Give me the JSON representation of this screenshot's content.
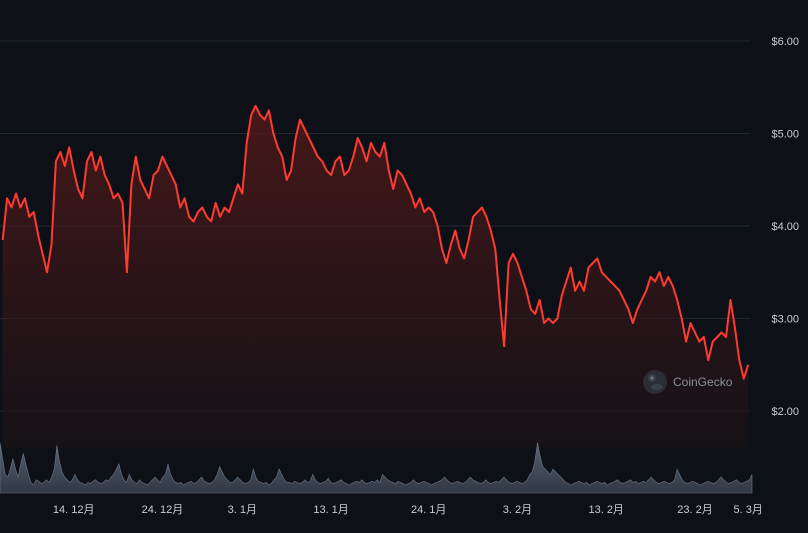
{
  "chart_data": {
    "type": "line",
    "grid": true,
    "price_axis": {
      "position": "right",
      "ylim": [
        1.6,
        6.4
      ],
      "ticks": [
        {
          "value": 6.0,
          "label": "$6.00"
        },
        {
          "value": 5.0,
          "label": "$5.00"
        },
        {
          "value": 4.0,
          "label": "$4.00"
        },
        {
          "value": 3.0,
          "label": "$3.00"
        },
        {
          "value": 2.0,
          "label": "$2.00"
        }
      ]
    },
    "x_axis": {
      "xlim": [
        -0.3,
        84.2
      ],
      "ticks": [
        {
          "x": 8,
          "label": "14. 12月"
        },
        {
          "x": 18,
          "label": "24. 12月"
        },
        {
          "x": 27,
          "label": "3. 1月"
        },
        {
          "x": 37,
          "label": "13. 1月"
        },
        {
          "x": 48,
          "label": "24. 1月"
        },
        {
          "x": 58,
          "label": "3. 2月"
        },
        {
          "x": 68,
          "label": "13. 2月"
        },
        {
          "x": 78,
          "label": "23. 2月"
        },
        {
          "x": 84,
          "label": "5. 3月"
        }
      ]
    },
    "series": [
      {
        "kind": "price",
        "color": "#ff3b30",
        "points": [
          [
            0.0,
            3.85
          ],
          [
            0.5,
            4.3
          ],
          [
            1.0,
            4.2
          ],
          [
            1.5,
            4.35
          ],
          [
            2.0,
            4.2
          ],
          [
            2.5,
            4.3
          ],
          [
            3.0,
            4.1
          ],
          [
            3.5,
            4.15
          ],
          [
            4.0,
            3.9
          ],
          [
            4.5,
            3.7
          ],
          [
            5.0,
            3.5
          ],
          [
            5.5,
            3.8
          ],
          [
            6.0,
            4.7
          ],
          [
            6.5,
            4.8
          ],
          [
            7.0,
            4.65
          ],
          [
            7.5,
            4.85
          ],
          [
            8.0,
            4.6
          ],
          [
            8.5,
            4.4
          ],
          [
            9.0,
            4.3
          ],
          [
            9.5,
            4.7
          ],
          [
            10.0,
            4.8
          ],
          [
            10.5,
            4.6
          ],
          [
            11.0,
            4.75
          ],
          [
            11.5,
            4.55
          ],
          [
            12.0,
            4.45
          ],
          [
            12.5,
            4.3
          ],
          [
            13.0,
            4.35
          ],
          [
            13.5,
            4.25
          ],
          [
            14.0,
            3.5
          ],
          [
            14.5,
            4.45
          ],
          [
            15.0,
            4.75
          ],
          [
            15.5,
            4.5
          ],
          [
            16.0,
            4.4
          ],
          [
            16.5,
            4.3
          ],
          [
            17.0,
            4.55
          ],
          [
            17.5,
            4.6
          ],
          [
            18.0,
            4.75
          ],
          [
            18.5,
            4.65
          ],
          [
            19.0,
            4.55
          ],
          [
            19.5,
            4.45
          ],
          [
            20.0,
            4.2
          ],
          [
            20.5,
            4.3
          ],
          [
            21.0,
            4.1
          ],
          [
            21.5,
            4.05
          ],
          [
            22.0,
            4.15
          ],
          [
            22.5,
            4.2
          ],
          [
            23.0,
            4.1
          ],
          [
            23.5,
            4.05
          ],
          [
            24.0,
            4.25
          ],
          [
            24.5,
            4.1
          ],
          [
            25.0,
            4.2
          ],
          [
            25.5,
            4.15
          ],
          [
            26.0,
            4.3
          ],
          [
            26.5,
            4.45
          ],
          [
            27.0,
            4.35
          ],
          [
            27.5,
            4.9
          ],
          [
            28.0,
            5.2
          ],
          [
            28.5,
            5.3
          ],
          [
            29.0,
            5.2
          ],
          [
            29.5,
            5.15
          ],
          [
            30.0,
            5.25
          ],
          [
            30.5,
            5.0
          ],
          [
            31.0,
            4.85
          ],
          [
            31.5,
            4.75
          ],
          [
            32.0,
            4.5
          ],
          [
            32.5,
            4.6
          ],
          [
            33.0,
            4.95
          ],
          [
            33.5,
            5.15
          ],
          [
            34.0,
            5.05
          ],
          [
            34.5,
            4.95
          ],
          [
            35.0,
            4.85
          ],
          [
            35.5,
            4.75
          ],
          [
            36.0,
            4.7
          ],
          [
            36.5,
            4.6
          ],
          [
            37.0,
            4.55
          ],
          [
            37.5,
            4.7
          ],
          [
            38.0,
            4.75
          ],
          [
            38.5,
            4.55
          ],
          [
            39.0,
            4.6
          ],
          [
            39.5,
            4.75
          ],
          [
            40.0,
            4.95
          ],
          [
            40.5,
            4.85
          ],
          [
            41.0,
            4.7
          ],
          [
            41.5,
            4.9
          ],
          [
            42.0,
            4.8
          ],
          [
            42.5,
            4.75
          ],
          [
            43.0,
            4.9
          ],
          [
            43.5,
            4.6
          ],
          [
            44.0,
            4.4
          ],
          [
            44.5,
            4.6
          ],
          [
            45.0,
            4.55
          ],
          [
            45.5,
            4.45
          ],
          [
            46.0,
            4.35
          ],
          [
            46.5,
            4.2
          ],
          [
            47.0,
            4.3
          ],
          [
            47.5,
            4.15
          ],
          [
            48.0,
            4.2
          ],
          [
            48.5,
            4.15
          ],
          [
            49.0,
            4.0
          ],
          [
            49.5,
            3.75
          ],
          [
            50.0,
            3.6
          ],
          [
            50.5,
            3.8
          ],
          [
            51.0,
            3.95
          ],
          [
            51.5,
            3.75
          ],
          [
            52.0,
            3.65
          ],
          [
            52.5,
            3.85
          ],
          [
            53.0,
            4.1
          ],
          [
            53.5,
            4.15
          ],
          [
            54.0,
            4.2
          ],
          [
            54.5,
            4.1
          ],
          [
            55.0,
            3.95
          ],
          [
            55.5,
            3.75
          ],
          [
            56.0,
            3.2
          ],
          [
            56.5,
            2.7
          ],
          [
            57.0,
            3.6
          ],
          [
            57.5,
            3.7
          ],
          [
            58.0,
            3.6
          ],
          [
            58.5,
            3.45
          ],
          [
            59.0,
            3.3
          ],
          [
            59.5,
            3.1
          ],
          [
            60.0,
            3.05
          ],
          [
            60.5,
            3.2
          ],
          [
            61.0,
            2.95
          ],
          [
            61.5,
            3.0
          ],
          [
            62.0,
            2.95
          ],
          [
            62.5,
            3.0
          ],
          [
            63.0,
            3.25
          ],
          [
            63.5,
            3.4
          ],
          [
            64.0,
            3.55
          ],
          [
            64.5,
            3.3
          ],
          [
            65.0,
            3.4
          ],
          [
            65.5,
            3.3
          ],
          [
            66.0,
            3.55
          ],
          [
            66.5,
            3.6
          ],
          [
            67.0,
            3.65
          ],
          [
            67.5,
            3.5
          ],
          [
            68.0,
            3.45
          ],
          [
            68.5,
            3.4
          ],
          [
            69.0,
            3.35
          ],
          [
            69.5,
            3.3
          ],
          [
            70.0,
            3.2
          ],
          [
            70.5,
            3.1
          ],
          [
            71.0,
            2.95
          ],
          [
            71.5,
            3.1
          ],
          [
            72.0,
            3.2
          ],
          [
            72.5,
            3.3
          ],
          [
            73.0,
            3.45
          ],
          [
            73.5,
            3.4
          ],
          [
            74.0,
            3.5
          ],
          [
            74.5,
            3.35
          ],
          [
            75.0,
            3.45
          ],
          [
            75.5,
            3.35
          ],
          [
            76.0,
            3.2
          ],
          [
            76.5,
            3.0
          ],
          [
            77.0,
            2.75
          ],
          [
            77.5,
            2.95
          ],
          [
            78.0,
            2.85
          ],
          [
            78.5,
            2.75
          ],
          [
            79.0,
            2.8
          ],
          [
            79.5,
            2.55
          ],
          [
            80.0,
            2.75
          ],
          [
            80.5,
            2.8
          ],
          [
            81.0,
            2.85
          ],
          [
            81.5,
            2.8
          ],
          [
            82.0,
            3.2
          ],
          [
            82.5,
            2.9
          ],
          [
            83.0,
            2.55
          ],
          [
            83.5,
            2.35
          ],
          [
            84.0,
            2.5
          ]
        ]
      },
      {
        "kind": "volume",
        "color": "#8a93a3",
        "relative_values": [
          0.95,
          0.65,
          0.35,
          0.3,
          0.45,
          0.65,
          0.45,
          0.3,
          0.55,
          0.75,
          0.55,
          0.35,
          0.2,
          0.15,
          0.25,
          0.22,
          0.18,
          0.2,
          0.25,
          0.2,
          0.3,
          0.45,
          0.9,
          0.6,
          0.4,
          0.3,
          0.25,
          0.2,
          0.25,
          0.35,
          0.25,
          0.2,
          0.18,
          0.15,
          0.2,
          0.18,
          0.22,
          0.25,
          0.2,
          0.18,
          0.2,
          0.25,
          0.22,
          0.3,
          0.35,
          0.45,
          0.55,
          0.35,
          0.25,
          0.2,
          0.35,
          0.25,
          0.2,
          0.18,
          0.25,
          0.2,
          0.18,
          0.15,
          0.2,
          0.25,
          0.3,
          0.25,
          0.2,
          0.3,
          0.35,
          0.55,
          0.35,
          0.25,
          0.2,
          0.18,
          0.2,
          0.15,
          0.18,
          0.2,
          0.22,
          0.18,
          0.2,
          0.25,
          0.3,
          0.22,
          0.2,
          0.18,
          0.2,
          0.25,
          0.35,
          0.5,
          0.4,
          0.3,
          0.25,
          0.2,
          0.2,
          0.25,
          0.3,
          0.25,
          0.2,
          0.18,
          0.2,
          0.25,
          0.45,
          0.3,
          0.22,
          0.2,
          0.18,
          0.2,
          0.15,
          0.18,
          0.25,
          0.3,
          0.45,
          0.35,
          0.25,
          0.2,
          0.2,
          0.18,
          0.22,
          0.2,
          0.18,
          0.2,
          0.25,
          0.2,
          0.22,
          0.35,
          0.25,
          0.2,
          0.18,
          0.2,
          0.22,
          0.28,
          0.2,
          0.18,
          0.2,
          0.22,
          0.25,
          0.2,
          0.18,
          0.15,
          0.18,
          0.2,
          0.22,
          0.2,
          0.25,
          0.2,
          0.18,
          0.2,
          0.22,
          0.2,
          0.25,
          0.2,
          0.35,
          0.3,
          0.25,
          0.22,
          0.2,
          0.18,
          0.22,
          0.2,
          0.18,
          0.15,
          0.18,
          0.2,
          0.25,
          0.2,
          0.18,
          0.2,
          0.22,
          0.2,
          0.18,
          0.15,
          0.18,
          0.2,
          0.22,
          0.25,
          0.3,
          0.25,
          0.2,
          0.18,
          0.2,
          0.22,
          0.2,
          0.18,
          0.2,
          0.25,
          0.3,
          0.25,
          0.22,
          0.2,
          0.18,
          0.2,
          0.25,
          0.2,
          0.18,
          0.2,
          0.22,
          0.2,
          0.25,
          0.3,
          0.25,
          0.2,
          0.18,
          0.2,
          0.22,
          0.2,
          0.18,
          0.2,
          0.25,
          0.35,
          0.4,
          0.6,
          0.95,
          0.7,
          0.5,
          0.45,
          0.4,
          0.35,
          0.45,
          0.4,
          0.35,
          0.3,
          0.25,
          0.2,
          0.18,
          0.15,
          0.18,
          0.2,
          0.22,
          0.2,
          0.18,
          0.2,
          0.15,
          0.18,
          0.2,
          0.22,
          0.2,
          0.18,
          0.2,
          0.15,
          0.18,
          0.2,
          0.22,
          0.25,
          0.2,
          0.18,
          0.2,
          0.22,
          0.25,
          0.2,
          0.22,
          0.18,
          0.2,
          0.22,
          0.2,
          0.25,
          0.3,
          0.25,
          0.2,
          0.18,
          0.2,
          0.22,
          0.2,
          0.18,
          0.2,
          0.25,
          0.45,
          0.35,
          0.25,
          0.2,
          0.18,
          0.2,
          0.22,
          0.2,
          0.18,
          0.15,
          0.18,
          0.2,
          0.22,
          0.2,
          0.18,
          0.2,
          0.25,
          0.3,
          0.25,
          0.2,
          0.18,
          0.2,
          0.22,
          0.25,
          0.2,
          0.18,
          0.2,
          0.22,
          0.25,
          0.35
        ]
      }
    ],
    "watermark": {
      "text": "CoinGecko",
      "logo": "coingecko-logo-icon"
    },
    "colors": {
      "background": "#0d1117",
      "grid": "#232830",
      "price_line": "#ff3b30",
      "fill_top": "#5a1a1a",
      "fill_bottom": "#1a1216",
      "volume": "#5f6b7c",
      "tick_text": "#c9ccd1"
    }
  }
}
